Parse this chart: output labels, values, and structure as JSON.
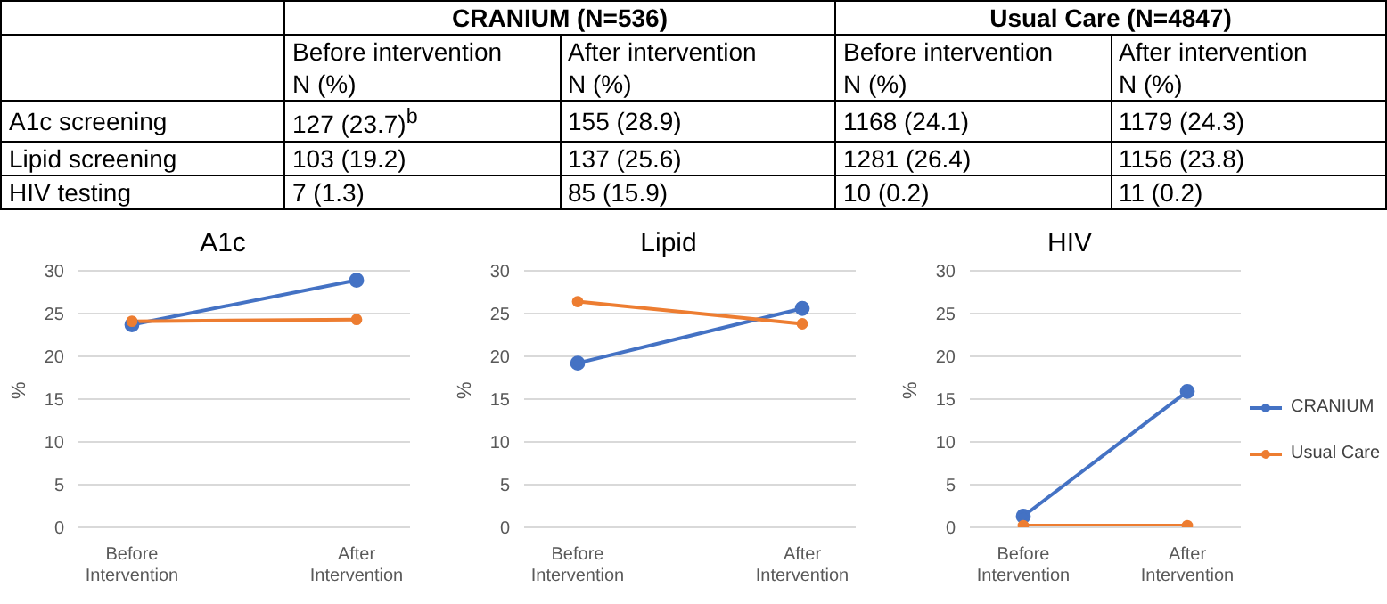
{
  "chart_data": [
    {
      "type": "line",
      "title": "A1c",
      "ylabel": "%",
      "categories": [
        "Before Intervention",
        "After Intervention"
      ],
      "ylim": [
        0,
        30
      ],
      "yticks": [
        0,
        5,
        10,
        15,
        20,
        25,
        30
      ],
      "grid": "y",
      "marker": "circle",
      "legend": false,
      "annotations": [
        "CRANIUM (N=536)",
        "Usual Care (N=4847)",
        "Before intervention\nN (%)",
        "After intervention\nN (%)",
        "Before intervention\nN (%)",
        "After intervention\nN (%)",
        "A1c screening",
        "127 (23.7)$^{b}$",
        "155 (28.9)",
        "1168 (24.1)",
        "1179 (24.3)"
      ],
      "series": [
        {
          "color": "#4472c4",
          "values": [
            23.7,
            28.9
          ]
        },
        {
          "color": "#ed7d31",
          "values": [
            24.1,
            24.3
          ]
        }
      ]
    },
    {
      "type": "line",
      "title": "Lipid",
      "ylabel": "%",
      "categories": [
        "Before Intervention",
        "After Intervention"
      ],
      "ylim": [
        0,
        30
      ],
      "yticks": [
        0,
        5,
        10,
        15,
        20,
        25,
        30
      ],
      "grid": "y",
      "marker": "circle",
      "legend": false,
      "annotations": [
        "Lipid screening",
        "103 (19.2)",
        "137 (25.6)",
        "1281 (26.4)",
        "1156 (23.8)"
      ],
      "series": [
        {
          "color": "#4472c4",
          "values": [
            19.2,
            25.6
          ]
        },
        {
          "color": "#ed7d31",
          "values": [
            26.4,
            23.8
          ]
        }
      ]
    },
    {
      "type": "line",
      "title": "HIV",
      "ylabel": "%",
      "categories": [
        "Before Intervention",
        "After Intervention"
      ],
      "ylim": [
        0,
        30
      ],
      "yticks": [
        0,
        5,
        10,
        15,
        20,
        25,
        30
      ],
      "grid": "y",
      "marker": "circle",
      "legend": "right",
      "annotations": [
        "HIV testing",
        "7 (1.3)",
        "85 (15.9)",
        "10 (0.2)",
        "11 (0.2)"
      ],
      "series": [
        {
          "name": "CRANIUM",
          "color": "#4472c4",
          "values": [
            1.3,
            15.9
          ]
        },
        {
          "name": "Usual Care",
          "color": "#ed7d31",
          "values": [
            0.2,
            0.2
          ]
        }
      ]
    }
  ]
}
